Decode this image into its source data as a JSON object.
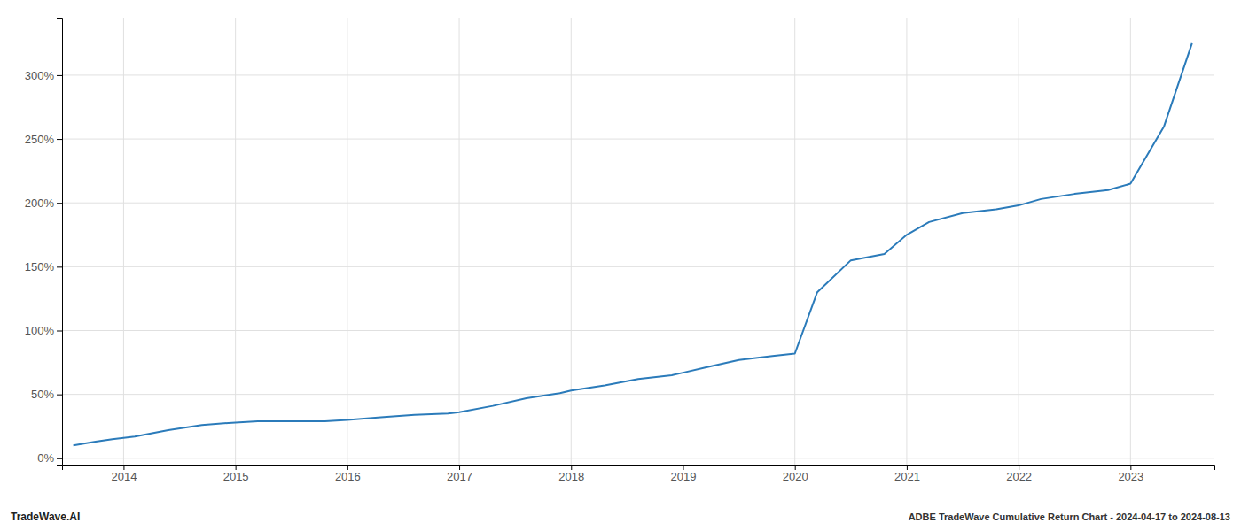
{
  "chart_data": {
    "type": "line",
    "title": "ADBE TradeWave Cumulative Return Chart - 2024-04-17 to 2024-08-13",
    "annotations": [
      "TradeWave.AI"
    ],
    "x": [
      2013.55,
      2013.75,
      2013.9,
      2014.1,
      2014.4,
      2014.7,
      2015.0,
      2015.2,
      2015.5,
      2015.8,
      2016.0,
      2016.3,
      2016.6,
      2016.9,
      2017.0,
      2017.3,
      2017.6,
      2017.9,
      2018.0,
      2018.3,
      2018.6,
      2018.9,
      2019.0,
      2019.2,
      2019.5,
      2019.8,
      2020.0,
      2020.2,
      2020.5,
      2020.8,
      2021.0,
      2021.2,
      2021.5,
      2021.8,
      2022.0,
      2022.2,
      2022.5,
      2022.8,
      2023.0,
      2023.3,
      2023.55
    ],
    "values": [
      10,
      13,
      15,
      17,
      22,
      26,
      28,
      29,
      29,
      29,
      30,
      32,
      34,
      35,
      36,
      41,
      47,
      51,
      53,
      57,
      62,
      65,
      67,
      71,
      77,
      80,
      82,
      130,
      155,
      160,
      175,
      185,
      192,
      195,
      198,
      203,
      207,
      210,
      215,
      260,
      325
    ],
    "color": "#2b7bba",
    "xlim": [
      2013.45,
      2023.75
    ],
    "xticks": [
      2014,
      2015,
      2016,
      2017,
      2018,
      2019,
      2020,
      2021,
      2022,
      2023
    ],
    "ylim": [
      -5,
      345
    ],
    "yticks": [
      {
        "value": 0,
        "label": "0%"
      },
      {
        "value": 50,
        "label": "50%"
      },
      {
        "value": 100,
        "label": "100%"
      },
      {
        "value": 150,
        "label": "150%"
      },
      {
        "value": 200,
        "label": "200%"
      },
      {
        "value": 250,
        "label": "250%"
      },
      {
        "value": 300,
        "label": "300%"
      }
    ],
    "grid": true
  }
}
